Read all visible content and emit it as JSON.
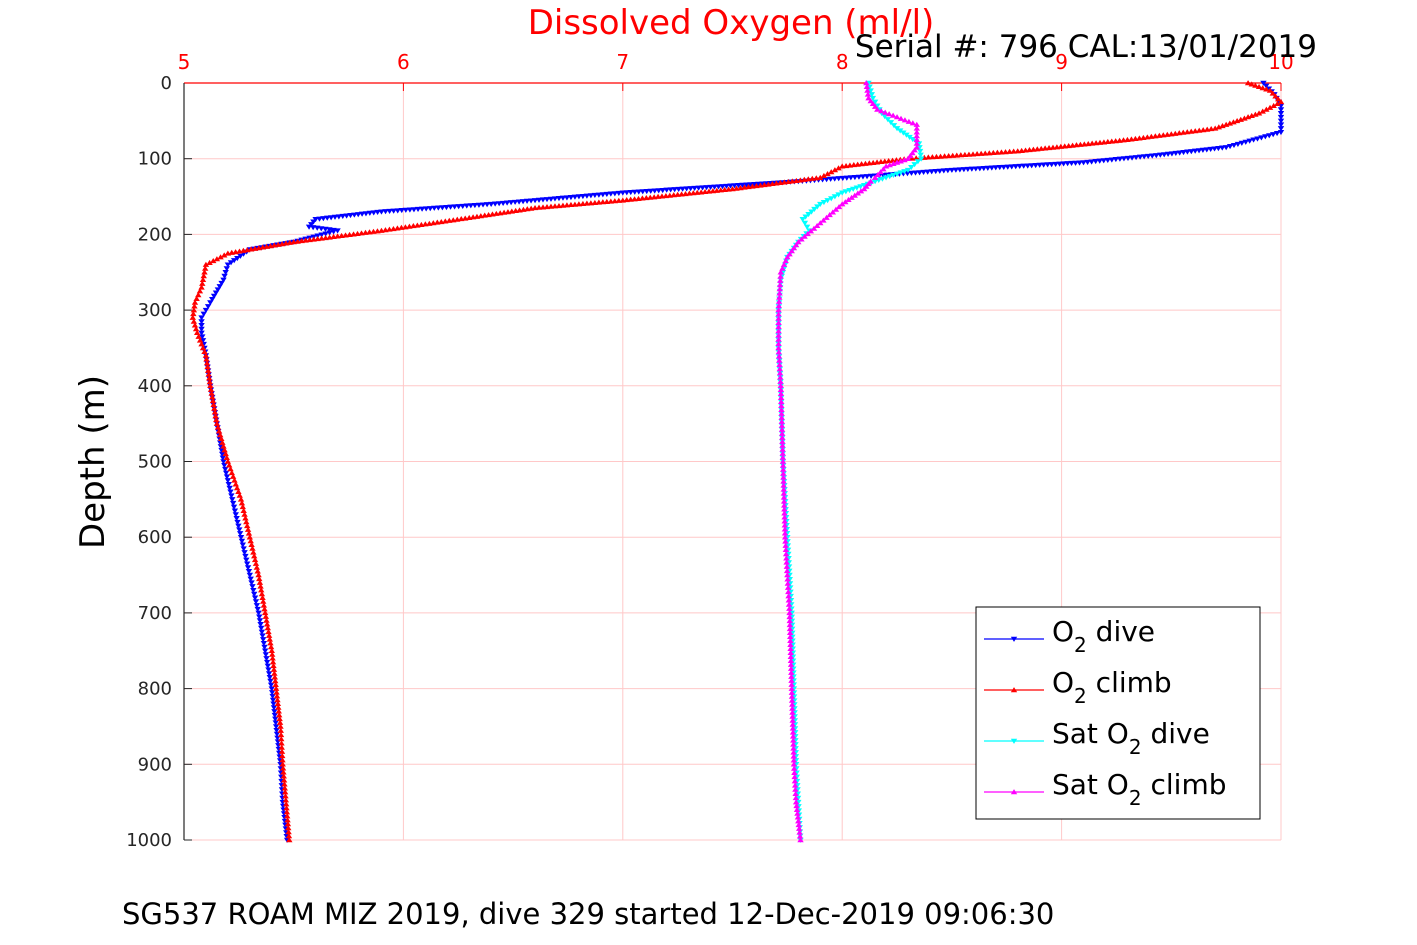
{
  "chart_data": {
    "type": "scatter",
    "title": "Dissolved Oxygen (ml/l)",
    "subtitle": "Serial #: 796  CAL:13/01/2019",
    "ylabel": "Depth (m)",
    "footer": "SG537 ROAM MIZ 2019, dive 329 started 12-Dec-2019 09:06:30",
    "xlim": [
      5,
      10
    ],
    "ylim": [
      0,
      1000
    ],
    "y_reversed": true,
    "x_axis_position": "top",
    "xticks": [
      "5",
      "6",
      "7",
      "8",
      "9",
      "10"
    ],
    "yticks": [
      "0",
      "100",
      "200",
      "300",
      "400",
      "500",
      "600",
      "700",
      "800",
      "900",
      "1000"
    ],
    "grid": true,
    "legend_position": "bottom-right",
    "colors": {
      "title": "#ff0000",
      "xaxis": "#ff0000",
      "grid": "#ffc8c8"
    },
    "series": [
      {
        "name": "O2 dive",
        "name_base": "O",
        "name_sub": "2",
        "name_rest": " dive",
        "color": "#0000ff",
        "marker": "triangle-down",
        "x": [
          9.92,
          9.97,
          10.0,
          10.0,
          10.0,
          9.75,
          9.45,
          9.1,
          8.5,
          7.8,
          7.0,
          6.4,
          5.9,
          5.6,
          5.57,
          5.7,
          5.5,
          5.3,
          5.2,
          5.18,
          5.12,
          5.08,
          5.08,
          5.1,
          5.12,
          5.15,
          5.18,
          5.22,
          5.26,
          5.3,
          5.34,
          5.37,
          5.4,
          5.42,
          5.44,
          5.45,
          5.47
        ],
        "y": [
          0,
          15,
          30,
          50,
          65,
          85,
          95,
          105,
          115,
          130,
          145,
          160,
          170,
          180,
          190,
          195,
          210,
          220,
          240,
          260,
          290,
          310,
          330,
          360,
          400,
          450,
          500,
          550,
          600,
          650,
          700,
          750,
          800,
          850,
          900,
          950,
          1000
        ]
      },
      {
        "name": "O2 climb",
        "name_base": "O",
        "name_sub": "2",
        "name_rest": " climb",
        "color": "#ff0000",
        "marker": "triangle-up",
        "x": [
          9.85,
          9.95,
          10.0,
          9.9,
          9.7,
          9.3,
          8.8,
          8.3,
          8.0,
          7.9,
          7.5,
          7.0,
          6.6,
          6.3,
          5.9,
          5.5,
          5.2,
          5.1,
          5.08,
          5.05,
          5.04,
          5.06,
          5.1,
          5.11,
          5.12,
          5.15,
          5.2,
          5.26,
          5.3,
          5.34,
          5.37,
          5.4,
          5.42,
          5.44,
          5.45,
          5.48
        ],
        "y": [
          0,
          10,
          25,
          40,
          60,
          75,
          90,
          100,
          110,
          125,
          140,
          155,
          165,
          178,
          195,
          210,
          225,
          240,
          270,
          290,
          310,
          330,
          360,
          380,
          400,
          450,
          500,
          550,
          600,
          650,
          700,
          750,
          800,
          850,
          900,
          1000
        ]
      },
      {
        "name": "Sat O2 dive",
        "name_base": "Sat O",
        "name_sub": "2",
        "name_rest": " dive",
        "color": "#00ffff",
        "marker": "triangle-down",
        "x": [
          8.12,
          8.14,
          8.18,
          8.25,
          8.35,
          8.36,
          8.3,
          8.2,
          8.1,
          8.0,
          7.9,
          7.82,
          7.85,
          7.8,
          7.75,
          7.72,
          7.71,
          7.71,
          7.72,
          7.73,
          7.75,
          7.76,
          7.77,
          7.78,
          7.79,
          7.8,
          7.81
        ],
        "y": [
          0,
          20,
          40,
          60,
          80,
          100,
          115,
          125,
          135,
          145,
          160,
          180,
          195,
          210,
          230,
          260,
          300,
          350,
          400,
          500,
          600,
          650,
          700,
          800,
          900,
          950,
          1000
        ]
      },
      {
        "name": "Sat O2 climb",
        "name_base": "Sat O",
        "name_sub": "2",
        "name_rest": " climb",
        "color": "#ff00ff",
        "marker": "triangle-up",
        "x": [
          8.11,
          8.12,
          8.16,
          8.25,
          8.34,
          8.34,
          8.3,
          8.2,
          8.15,
          8.13,
          8.1,
          8.0,
          7.9,
          7.8,
          7.75,
          7.72,
          7.71,
          7.71,
          7.72,
          7.73,
          7.74,
          7.75,
          7.76,
          7.77,
          7.78,
          7.79,
          7.81
        ],
        "y": [
          0,
          20,
          35,
          45,
          55,
          85,
          100,
          110,
          125,
          130,
          140,
          160,
          185,
          210,
          230,
          250,
          300,
          350,
          400,
          500,
          600,
          650,
          700,
          800,
          900,
          950,
          1000
        ]
      }
    ]
  }
}
